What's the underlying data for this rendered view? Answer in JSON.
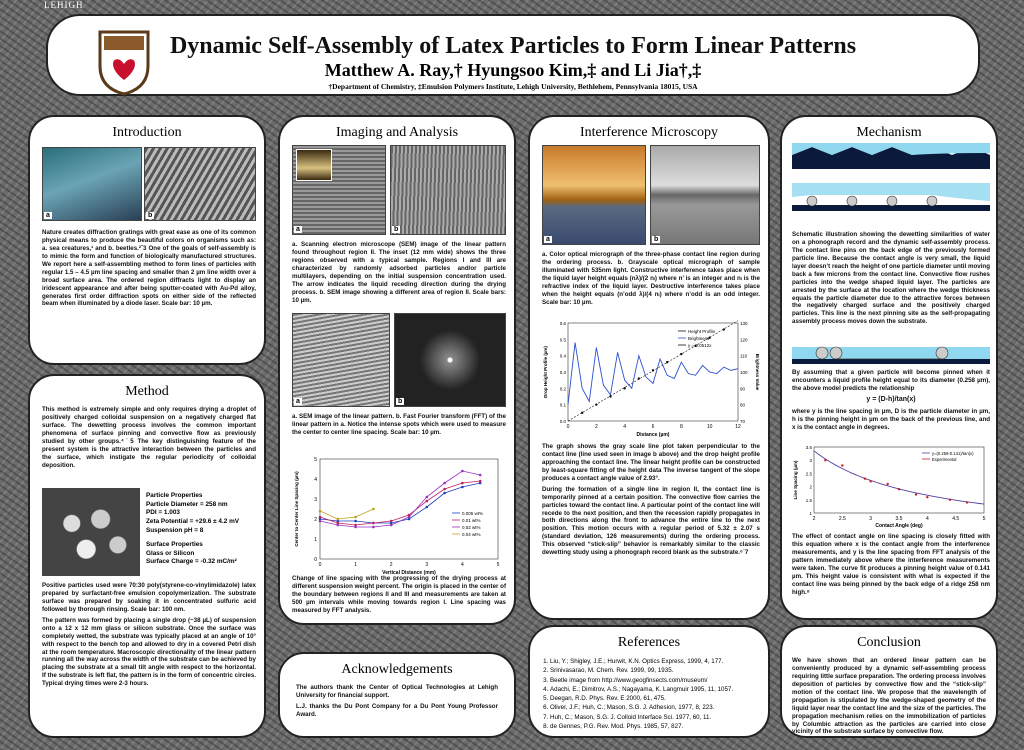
{
  "header": {
    "logo_text": "LEHIGH",
    "title": "Dynamic Self-Assembly of Latex Particles to Form Linear Patterns",
    "authors": "Matthew A. Ray,† Hyungsoo Kim,‡ and Li Jia†,‡",
    "affiliation": "†Department of Chemistry, ‡Emulsion Polymers Institute,  Lehigh University, Bethlehem, Pennsylvania 18015, USA"
  },
  "intro": {
    "title": "Introduction",
    "img_labels": [
      "a",
      "b"
    ],
    "text": "Nature creates diffraction gratings with great ease as one of its common physical means to produce the beautiful colors on organisms such as:  a. sea creatures,¹ and b. beetles.²ˆ3 One of the goals of self-assembly is to mimic the form and function of biologically manufactured structures. We report here a self-assembling method to form lines of particles with regular 1.5 – 4.5 µm line spacing and smaller than 2 µm line width over a broad surface area. The ordered region diffracts light to display an iridescent appearance and after being sputter-coated with Au-Pd alloy, generates first order diffraction spots on either side of the reflected beam when illuminated by a diode laser. Scale bar: 10 µm."
  },
  "method": {
    "title": "Method",
    "p1": "This method is extremely simple and only requires drying a droplet of positively charged colloidal suspension on a negatively charged flat surface.  The dewetting process involves the common important phenomena of surface pinning and convective flow as previously studied by other groups.⁴˙5 The key distinguishing feature of the present system is the attractive interaction between the particles and the surface, which instigate the regular periodicity of colloidal deposition.",
    "props_title": "Particle Properties",
    "props": [
      "Particle Diameter = 258 nm",
      "PDI = 1.003",
      "Zeta Potential = +29.6 ± 4.2 mV",
      "Suspension pH = 8"
    ],
    "surf_title": "Surface Properties",
    "surf": [
      "Glass or Silicon",
      "Surface Charge = -0.32 mC/m²"
    ],
    "p2": "Positive particles used were 70:30 poly(styrene-co-vinylimidazole) latex prepared by surfactant-free emulsion copolymerization.  The substrate surface was prepared by soaking it in concentrated sulfuric acid followed by thorough rinsing.  Scale bar: 100 nm.",
    "p3": "The pattern was formed by placing a single drop (~38 µL) of suspension onto a 12 x 12 mm glass or silicon substrate. Once the surface was completely wetted, the substrate was typically placed at an angle of 10° with respect to the bench top and allowed to dry in a covered Petri dish at the room temperature. Macroscopic directionality of the linear pattern running all the way across the width of the substrate can be achieved by placing the substrate at a small tilt angle with respect to the horizontal.  If the substrate is left flat, the pattern is in the form of concentric circles. Typical drying times were 2-3 hours."
  },
  "imaging": {
    "title": "Imaging and Analysis",
    "img_labels": [
      "a",
      "b",
      "a",
      "b"
    ],
    "p1": "a. Scanning electron microscope (SEM) image of the linear pattern found throughout region II. The inset (12 mm wide) shows the three regions observed with a typical sample. Regions I and III are characterized by randomly adsorbed particles and/or particle multilayers, depending on the initial suspension concentration used. The arrow indicates the liquid receding direction during the drying process.  b. SEM image showing a different area of region II. Scale bars: 10 µm.",
    "p2": "a. SEM image of the linear pattern. b. Fast Fourier transform (FFT) of the linear pattern in a.  Notice the intense spots which were used to measure the center to center line spacing. Scale bar: 10 µm.",
    "p3": "Change of line spacing with the progressing of the drying process at different suspension weight percent. The origin is placed in the center of the boundary between regions II and III and measurements are taken at 500 µm intervals while moving towards region I.  Line spacing was measured by FFT analysis."
  },
  "interference": {
    "title": "Interference Microscopy",
    "img_labels": [
      "a",
      "b"
    ],
    "p1": "a. Color optical micrograph of the three-phase contact line region during the ordering process.  b. Grayscale optical micrograph of sample illuminated with 535nm light. Constructive interference takes place when the liquid layer height equals (nλ)/(2 nₗ) where n’ is an integer and nₗ is the refractive index of the liquid layer. Destructive interference takes place when the height equals (n’odd λ)/(4 nₗ) where n’odd is an odd integer.  Scale bar: 10 µm.",
    "p2": "The graph shows the gray scale line plot taken perpendicular to the contact line (line used seen in image b above) and the drop height profile approaching the contact line. The linear height profile can be constructed by least-square fitting of the height data The inverse tangent of the slope produces a contact angle value of 2.93°.",
    "p3": "During the formation of a single line in region II, the contact line is temporarily pinned at a certain position.  The convective flow carries the particles toward the contact line. A particular point of the contact line will recede to the next position, and then the recession rapidly propagates in both directions along the front to advance the entire line to the next position. This motion occurs with a regular period of 5.32 ± 2.07 s (standard deviation, 126 measurements) during the ordering process. This observed “stick-slip” behavior is remarkably similar to the classic dewetting study using a phonograph record blank as the substrate.⁶˙7"
  },
  "mechanism": {
    "title": "Mechanism",
    "p1": "Schematic illustration showing the dewetting similarities of water on a phonograph record and the dynamic self-assembly process. The contact line pins on the back edge of the previously formed particle line. Because the contact angle is very small, the liquid layer doesn’t reach the height of one particle diameter until moving back a few microns from the contact line.  Convective flow rushes particles into the wedge shaped liquid layer. The particles are arrested by the surface at the location where the wedge thickness equals the particle diameter due to the attractive forces between the negatively charged surface and the positively charged particles.  This line is the next pinning site as the self-propagating assembly process moves down the substrate.",
    "p2": "By assuming that a given particle will become pinned when it encounters a liquid profile height equal to its diameter (0.258 µm), the above model predicts the relationship",
    "formula": "y = (D-h)/tan(x)",
    "p3": "where y is the line spacing in µm, D is the particle diameter in µm, h is the pinning height in µm on the back of the previous line, and x is the contact angle in degrees.",
    "p4": "The effect of contact angle on line spacing is closely fitted with this equation where x is the contact angle from the interference measurements, and y is the line spacing from FFT analysis of the pattern immediately above where the interference measurements were taken.  The curve fit produces a pinning height value of 0.141 µm. This height value is consistent with what is expected if the contact line was being pinned by the back edge of a ridge 258 nm high.⁸"
  },
  "ack": {
    "title": "Acknowledgements",
    "p1": "The authors thank the Center of Optical Technologies at Lehigh University for financial support.",
    "p2": "L.J. thanks the Du Pont Company for a Du Pont Young Professor Award."
  },
  "refs": {
    "title": "References",
    "items": [
      "Liu, Y.; Shigley, J.E.; Hurwit, K.N. Optics Express, 1999, 4, 177.",
      "Srinivasarao, M. Chem. Rev. 1999, 99, 1935.",
      "Beetle image from http://www.geogfinsects.com/museum/",
      "Adachi, E.; Dimitrov, A.S.; Nagayama, K. Langmuir 1995, 11, 1057.",
      "Deegan, R.D. Phys. Rev. E 2000, 61, 475.",
      "Oliver, J.F.; Huh, C.; Mason, S.G. J. Adhesion, 1977, 8, 223.",
      "Huh, C.; Mason, S.G. J. Colloid Interface Sci. 1977, 60, 11.",
      "de Gennes, P.G. Rev. Mod. Phys. 1985, 57, 827."
    ]
  },
  "conclusion": {
    "title": "Conclusion",
    "text": "We have shown that an ordered linear pattern can be conveniently produced by a dynamic self-assembling process requiring little surface preparation.  The ordering process involves deposition of particles by convective flow and the “stick-slip” motion of the contact line.  We propose that the wavelength of propagation is stipulated by the wedge-shaped geometry of the liquid layer near the contact line and the size of the particles.  The propagation mechanism relies on the immobilization of particles by Columbic attraction as the particles are carried into close vicinity of the substrate surface by convective flow."
  },
  "chart_data": [
    {
      "type": "line",
      "ylabel": "Center to Center Line Spacing (µm)",
      "xlabel": "Vertical Distance (mm)",
      "xlim": [
        0,
        5
      ],
      "ylim": [
        0,
        5
      ],
      "x": [
        0,
        0.5,
        1,
        1.5,
        2,
        2.5,
        3,
        3.5,
        4,
        4.5
      ],
      "series": [
        {
          "name": "0.005 wt%",
          "color": "#1f3fbf",
          "values": [
            2.0,
            1.9,
            1.9,
            1.8,
            1.8,
            2.0,
            2.6,
            3.3,
            3.6,
            3.8
          ]
        },
        {
          "name": "0.01 wt%",
          "color": "#c02060",
          "values": [
            2.1,
            1.8,
            1.7,
            1.8,
            1.9,
            2.2,
            2.9,
            3.5,
            3.8,
            3.9
          ]
        },
        {
          "name": "0.02 wt%",
          "color": "#9a30c0",
          "values": [
            1.9,
            1.7,
            1.6,
            1.6,
            1.7,
            2.1,
            3.1,
            3.8,
            4.4,
            4.2
          ]
        },
        {
          "name": "0.04 wt%",
          "color": "#c0a020",
          "values": [
            2.4,
            2.0,
            2.1,
            2.5,
            null,
            null,
            null,
            null,
            null,
            null
          ]
        }
      ],
      "legend": "inside-right"
    },
    {
      "type": "line",
      "xlabel": "Distance (µm)",
      "ylabel": "Drop Height Profile (µm)",
      "ylabel2": "Brightness Value",
      "xlim": [
        0,
        12
      ],
      "ylim": [
        0,
        0.6
      ],
      "y2lim": [
        70,
        130
      ],
      "legend_items": [
        "Height Profile",
        "Brightness",
        "y = 0.0512x"
      ],
      "height_profile": {
        "x": [
          1,
          2,
          3,
          4,
          5,
          6,
          7,
          8,
          9,
          10,
          11
        ],
        "y": [
          0.05,
          0.1,
          0.15,
          0.2,
          0.26,
          0.31,
          0.36,
          0.41,
          0.46,
          0.51,
          0.56
        ]
      },
      "brightness": {
        "x": [
          0,
          0.5,
          1,
          1.5,
          2,
          2.5,
          3,
          3.5,
          4,
          4.5,
          5,
          5.5,
          6,
          6.5,
          7,
          7.5,
          8,
          8.5,
          9,
          9.5,
          10,
          10.5,
          11,
          11.5,
          12
        ],
        "y": [
          80,
          118,
          90,
          82,
          115,
          92,
          86,
          112,
          95,
          90,
          110,
          97,
          93,
          108,
          98,
          96,
          106,
          99,
          98,
          104,
          100,
          99,
          103,
          101,
          102
        ]
      }
    },
    {
      "type": "line",
      "xlabel": "Contact Angle (deg)",
      "ylabel": "Line Spacing (µm)",
      "xlim": [
        2,
        5
      ],
      "ylim": [
        1,
        3.5
      ],
      "legend_items": [
        "y=(0.258-0.141)/tan(x)",
        "Experimental"
      ],
      "experimental": {
        "x": [
          2.2,
          2.5,
          2.9,
          3.0,
          3.3,
          3.5,
          3.8,
          4.0,
          4.4,
          4.7
        ],
        "y": [
          3.0,
          2.8,
          2.3,
          2.2,
          2.1,
          1.9,
          1.7,
          1.6,
          1.5,
          1.4
        ]
      }
    }
  ]
}
